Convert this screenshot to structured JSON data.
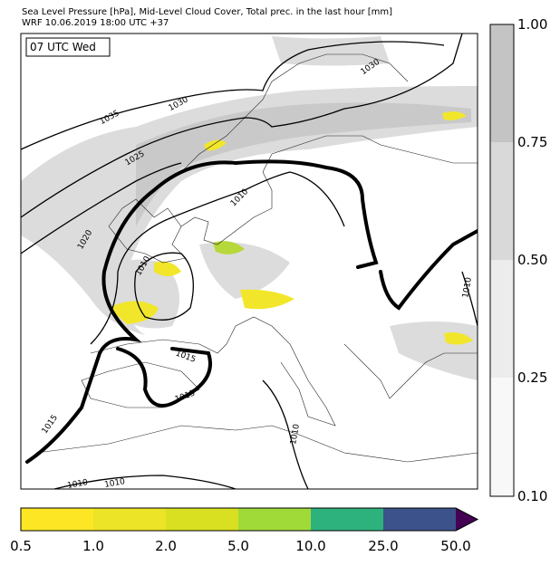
{
  "header": {
    "title": "Sea Level Pressure [hPa], Mid-Level Cloud Cover, Total prec. in the last hour [mm]",
    "subtitle": "WRF 10.06.2019 18:00 UTC +37"
  },
  "time_label": "07 UTC Wed",
  "contour_labels": [
    "1035",
    "1030",
    "1030",
    "1025",
    "1020",
    "1010",
    "1010",
    "1015",
    "1015",
    "1015",
    "1010",
    "1010",
    "1010",
    "1010"
  ],
  "cloud_colorbar": {
    "ticks": [
      "1.00",
      "0.75",
      "0.50",
      "0.25",
      "0.10"
    ]
  },
  "precip_colorbar": {
    "ticks": [
      "0.5",
      "1.0",
      "2.0",
      "5.0",
      "10.0",
      "25.0",
      "50.0"
    ]
  }
}
